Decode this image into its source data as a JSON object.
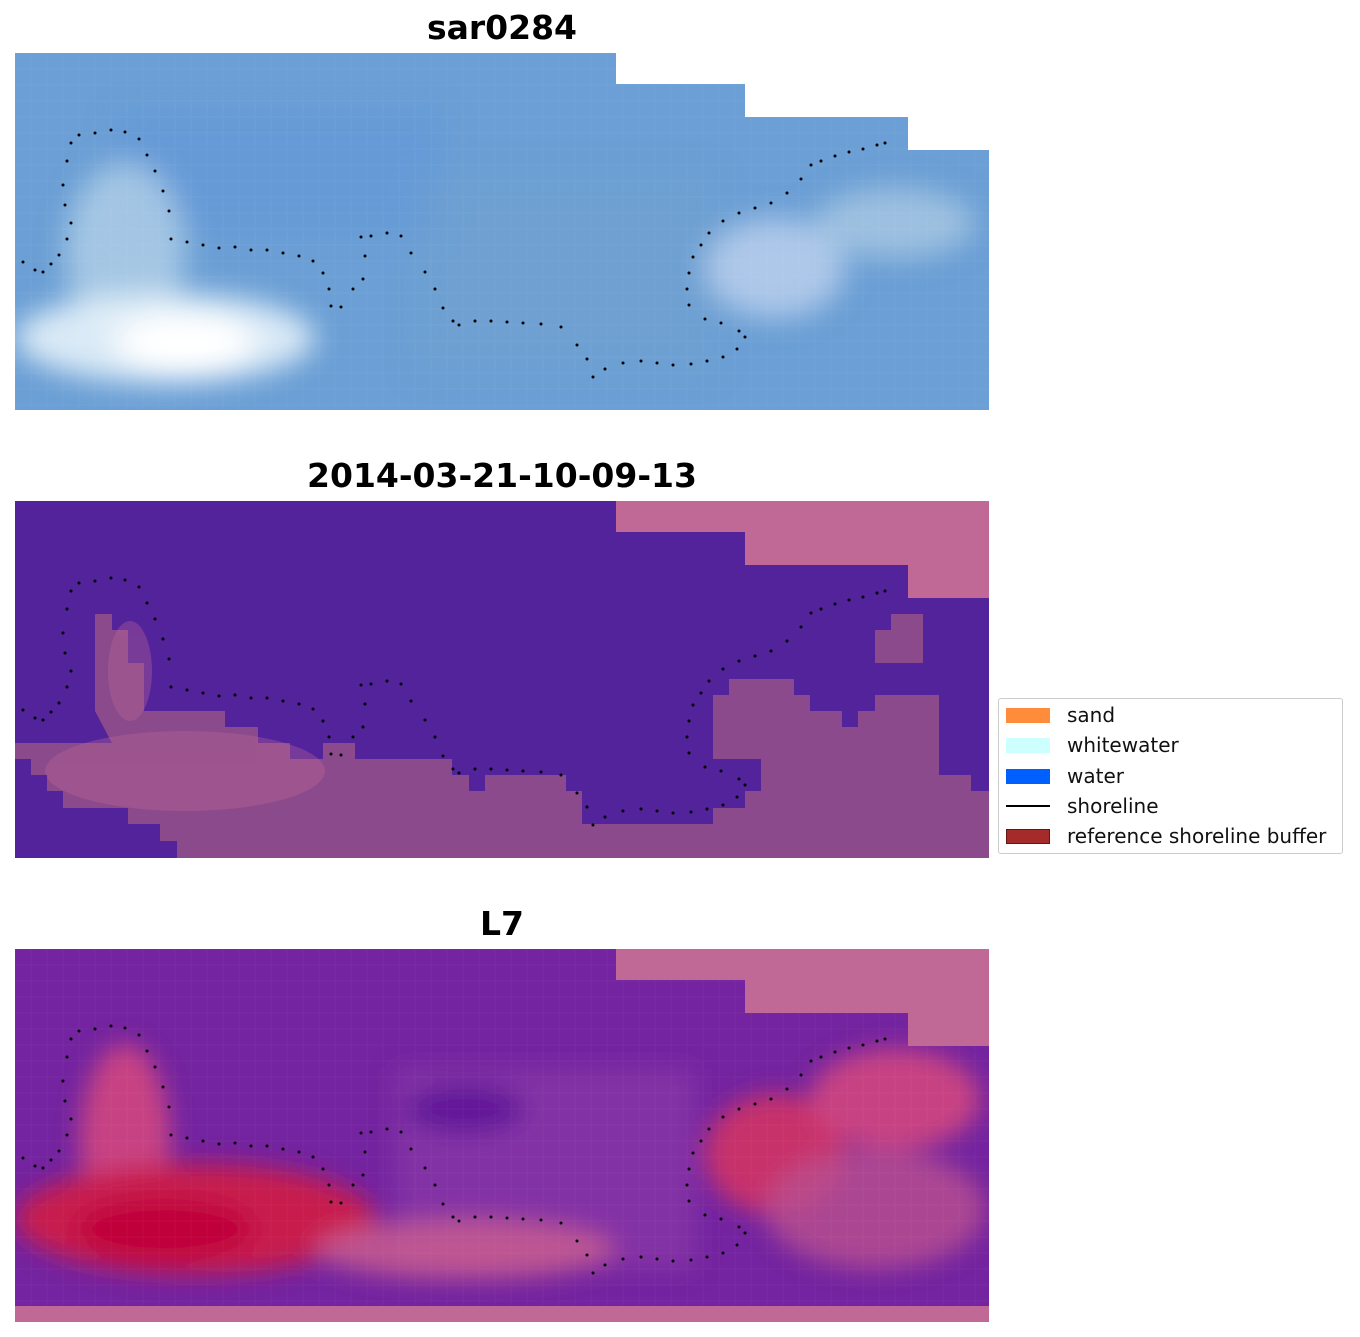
{
  "panels": [
    {
      "title": "sar0284"
    },
    {
      "title": "2014-03-21-10-09-13"
    },
    {
      "title": "L7"
    }
  ],
  "legend": {
    "items": [
      {
        "label": "sand",
        "color": "#ff8c3a",
        "kind": "patch",
        "icon": "sand-swatch"
      },
      {
        "label": "whitewater",
        "color": "#ccfffd",
        "kind": "patch",
        "icon": "whitewater-swatch"
      },
      {
        "label": "water",
        "color": "#0060ff",
        "kind": "patch",
        "icon": "water-swatch"
      },
      {
        "label": "shoreline",
        "color": "#000000",
        "kind": "line",
        "icon": "shoreline-line"
      },
      {
        "label": "reference shoreline buffer",
        "color": "#a52a2a",
        "kind": "patch",
        "icon": "buffer-swatch"
      }
    ]
  },
  "colors": {
    "rgb_base": "#6a9fd6",
    "classified_water": "#52239a",
    "classified_nodata": "#c06896",
    "index_low": "#6a1fa2",
    "index_high": "#c2003a"
  }
}
